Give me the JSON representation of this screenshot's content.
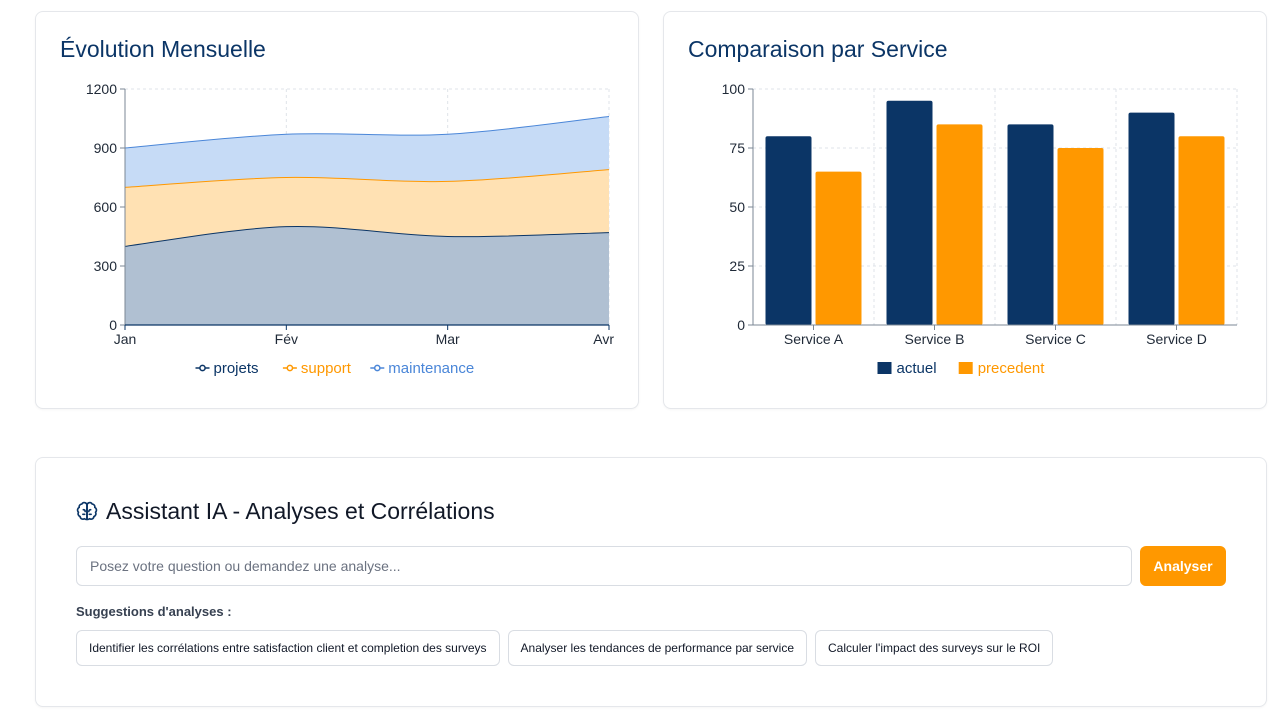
{
  "evolution": {
    "title": "Évolution Mensuelle",
    "chart_data": {
      "type": "area",
      "stacked": true,
      "categories": [
        "Jan",
        "Fév",
        "Mar",
        "Avr"
      ],
      "series": [
        {
          "name": "projets",
          "values": [
            400,
            500,
            450,
            470
          ],
          "color": "#0b3566"
        },
        {
          "name": "support",
          "values": [
            300,
            250,
            280,
            320
          ],
          "color": "#ff9800"
        },
        {
          "name": "maintenance",
          "values": [
            200,
            220,
            240,
            270
          ],
          "color": "#4a86d8"
        }
      ],
      "yticks": [
        0,
        300,
        600,
        900,
        1200
      ],
      "ylim": [
        0,
        1200
      ],
      "grid": true,
      "legend": "bottom-center"
    }
  },
  "comparison": {
    "title": "Comparaison par Service",
    "chart_data": {
      "type": "bar",
      "categories": [
        "Service A",
        "Service B",
        "Service C",
        "Service D"
      ],
      "series": [
        {
          "name": "actuel",
          "values": [
            80,
            95,
            85,
            90
          ],
          "color": "#0b3566"
        },
        {
          "name": "precedent",
          "values": [
            65,
            85,
            75,
            80
          ],
          "color": "#ff9800"
        }
      ],
      "yticks": [
        0,
        25,
        50,
        75,
        100
      ],
      "ylim": [
        0,
        100
      ],
      "grid": true,
      "legend": "bottom-center"
    }
  },
  "assistant": {
    "icon": "brain-icon",
    "title": "Assistant IA - Analyses et Corrélations",
    "input_placeholder": "Posez votre question ou demandez une analyse...",
    "input_value": "",
    "analyze_label": "Analyser",
    "accent": "#ff9800",
    "suggestions_label": "Suggestions d'analyses :",
    "suggestions": [
      "Identifier les corrélations entre satisfaction client et completion des surveys",
      "Analyser les tendances de performance par service",
      "Calculer l'impact des surveys sur le ROI"
    ]
  }
}
